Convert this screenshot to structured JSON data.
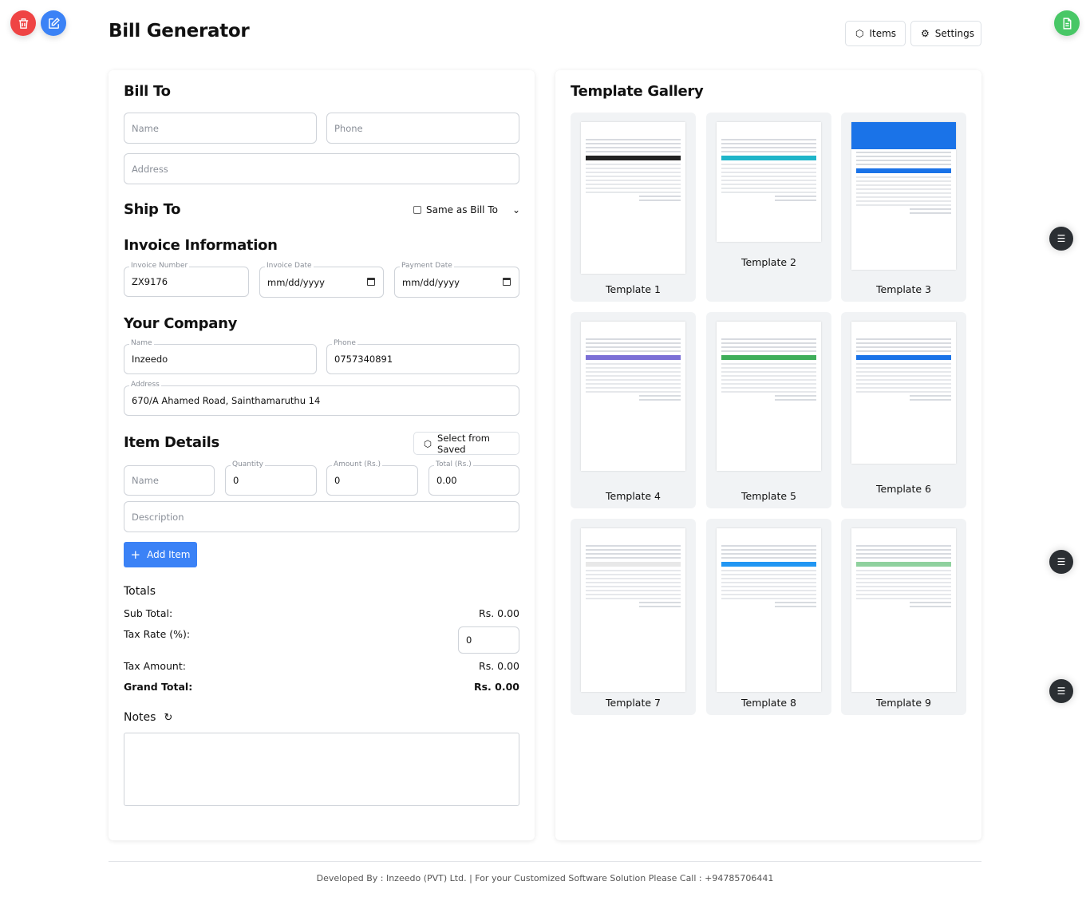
{
  "header": {
    "title": "Bill Generator",
    "items_label": "Items",
    "settings_label": "Settings"
  },
  "colors": {
    "delete": "#ef4444",
    "edit": "#3b82f6",
    "generate": "#48c766",
    "primary": "#3b82f6",
    "side_button": "#2b2f33"
  },
  "bill_to": {
    "title": "Bill To",
    "name_placeholder": "Name",
    "phone_placeholder": "Phone",
    "address_placeholder": "Address"
  },
  "ship_to": {
    "title": "Ship To",
    "same_as_label": "Same as Bill To",
    "same_as_checked": false
  },
  "invoice_info": {
    "title": "Invoice Information",
    "number_label": "Invoice Number",
    "number_value": "ZX9176",
    "date_label": "Invoice Date",
    "date_value": "mm/dd/yyyy",
    "payment_label": "Payment Date",
    "payment_value": "mm/dd/yyyy"
  },
  "company": {
    "title": "Your Company",
    "name_label": "Name",
    "name_value": "Inzeedo",
    "phone_label": "Phone",
    "phone_value": "0757340891",
    "address_label": "Address",
    "address_value": "670/A Ahamed Road, Sainthamaruthu 14"
  },
  "items": {
    "title": "Item Details",
    "select_saved_label": "Select from Saved",
    "name_placeholder": "Name",
    "quantity_label": "Quantity",
    "quantity_value": "0",
    "amount_label": "Amount (Rs.)",
    "amount_value": "0",
    "total_label": "Total (Rs.)",
    "total_value": "0.00",
    "description_placeholder": "Description",
    "add_label": "Add Item"
  },
  "totals": {
    "title": "Totals",
    "sub_total_label": "Sub Total:",
    "sub_total_value": "Rs. 0.00",
    "tax_rate_label": "Tax Rate (%):",
    "tax_rate_value": "0",
    "tax_amount_label": "Tax Amount:",
    "tax_amount_value": "Rs. 0.00",
    "grand_total_label": "Grand Total:",
    "grand_total_value": "Rs. 0.00"
  },
  "notes": {
    "title": "Notes",
    "value": ""
  },
  "gallery": {
    "title": "Template Gallery",
    "templates": [
      {
        "name": "Template 1",
        "accent": "#222222"
      },
      {
        "name": "Template 2",
        "accent": "#1fb5c9"
      },
      {
        "name": "Template 3",
        "accent": "#1a73e8"
      },
      {
        "name": "Template 4",
        "accent": "#7b6fd6"
      },
      {
        "name": "Template 5",
        "accent": "#3fae5a"
      },
      {
        "name": "Template 6",
        "accent": "#1a73e8"
      },
      {
        "name": "Template 7",
        "accent": "#e8e8e8"
      },
      {
        "name": "Template 8",
        "accent": "#2196f3"
      },
      {
        "name": "Template 9",
        "accent": "#8fd19e"
      }
    ]
  },
  "footer": {
    "text": "Developed By : Inzeedo (PVT) Ltd. | For your Customized Software Solution Please Call : +94785706441"
  }
}
